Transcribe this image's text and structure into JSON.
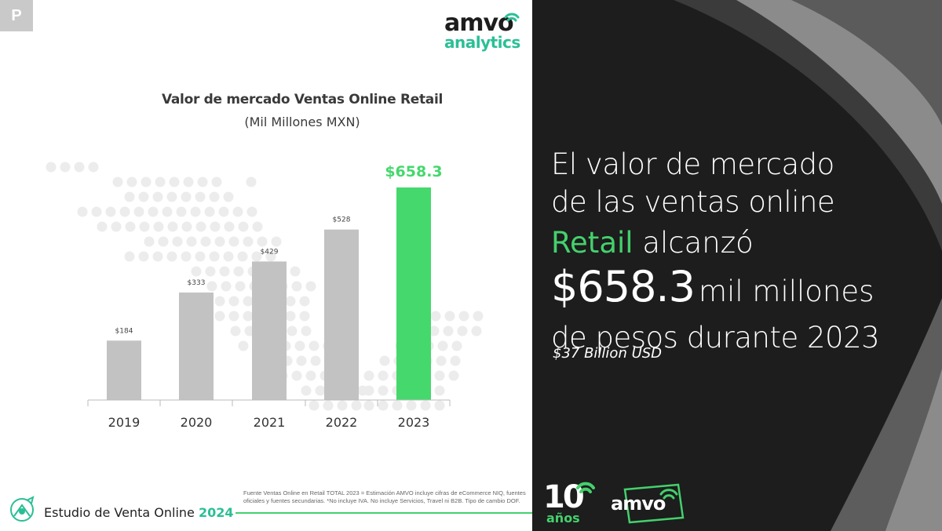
{
  "badge_letter": "P",
  "logo": {
    "word": "amvo",
    "sub": "analytics"
  },
  "chart_data": {
    "type": "bar",
    "title": "Valor de mercado Ventas Online Retail",
    "subtitle": "(Mil Millones MXN)",
    "categories": [
      "2019",
      "2020",
      "2021",
      "2022",
      "2023"
    ],
    "values": [
      184,
      333,
      429,
      528,
      658.3
    ],
    "value_labels": [
      "$184",
      "$333",
      "$429",
      "$528",
      "$658.3"
    ],
    "highlight_index": 4,
    "colors": {
      "bar": "#c2c2c2",
      "highlight": "#45d86d",
      "map_dots": "#ececec",
      "axis": "#bbbbbb"
    },
    "grid": false,
    "legend": "none"
  },
  "footer": {
    "study_label": "Estudio de Venta Online",
    "study_year": "2024",
    "source_note": "Fuente Ventas Online en Retail TOTAL 2023 = Estimación AMVO incluye cifras de eCommerce NIQ, fuentes oficiales y fuentes secundarias. *No incluye IVA. No incluye Servicios, Travel ni B2B. Tipo de cambio DOF."
  },
  "headline": {
    "line1": "El valor de mercado",
    "line2": "de las ventas online",
    "line3_green": "Retail",
    "line3_rest": "alcanzó",
    "line4_big": "$658.3",
    "line4_rest": "mil millones",
    "line5": "de pesos durante 2023",
    "usd_note": "$37 Billion USD"
  },
  "badge10": {
    "number": "10",
    "label": "años"
  },
  "brand_footer": {
    "word": "amvo"
  },
  "colors": {
    "accent_green": "#45d06d",
    "teal": "#2bbf96",
    "dark_panel": "#1c1d1c"
  }
}
